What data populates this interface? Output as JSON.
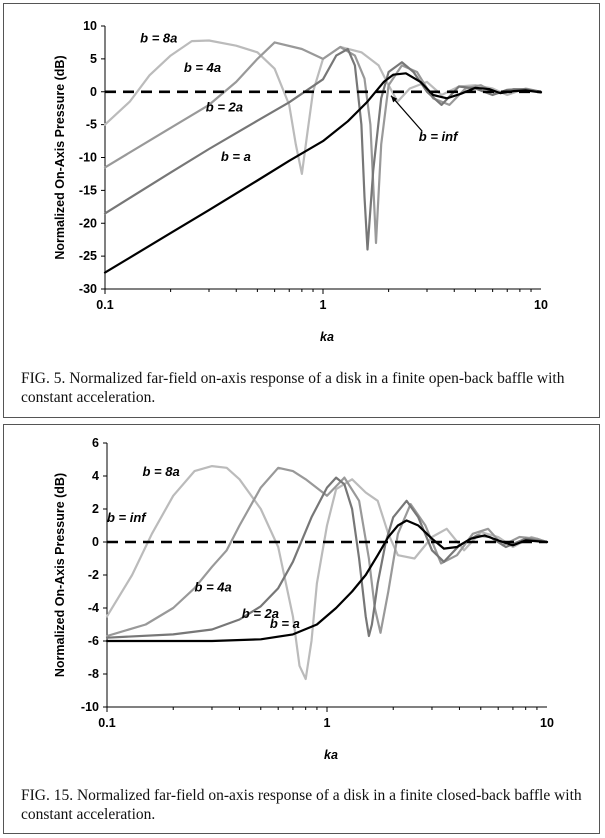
{
  "chart_data": [
    {
      "type": "line",
      "id": "fig5",
      "caption": "FIG. 5. Normalized far-field on-axis response of a disk in a finite open-back baffle with constant acceleration.",
      "xlabel": "ka",
      "ylabel": "Normalized On-Axis Pressure (dB)",
      "xscale": "log",
      "xlim": [
        0.1,
        10
      ],
      "ylim": [
        -30,
        10
      ],
      "xticks": [
        0.1,
        1,
        10
      ],
      "xtick_labels": [
        "0.1",
        "1",
        "10"
      ],
      "yticks": [
        10,
        5,
        0,
        -5,
        -10,
        -15,
        -20,
        -25,
        -30
      ],
      "ytick_labels": [
        "10",
        "5",
        "0",
        "-5",
        "-10",
        "-15",
        "-20",
        "-25",
        "-30"
      ],
      "grid": false,
      "legend": "none",
      "series": [
        {
          "name": "b = inf",
          "color": "#000000",
          "dash": true,
          "x": [
            0.1,
            10
          ],
          "y": [
            0,
            0
          ]
        },
        {
          "name": "b = a",
          "color": "#000000",
          "x": [
            0.1,
            0.2,
            0.3,
            0.5,
            0.7,
            1.0,
            1.3,
            1.6,
            1.9,
            2.1,
            2.4,
            2.8,
            3.2,
            3.7,
            4.3,
            5.0,
            5.8,
            6.5,
            7.5,
            8.5,
            10
          ],
          "y": [
            -27.5,
            -21.5,
            -18,
            -13.5,
            -10.5,
            -7.5,
            -4.5,
            -1.5,
            1.5,
            2.6,
            2.8,
            1.5,
            -0.5,
            -1.0,
            -0.3,
            0.6,
            0.4,
            -0.2,
            0.1,
            0.2,
            -0.1
          ]
        },
        {
          "name": "b = 2a",
          "color": "#777777",
          "x": [
            0.1,
            0.2,
            0.3,
            0.5,
            0.7,
            1.0,
            1.15,
            1.3,
            1.4,
            1.5,
            1.55,
            1.6,
            1.7,
            1.85,
            2.0,
            2.3,
            2.6,
            3.0,
            3.5,
            4.2,
            5.0,
            6.0,
            7.0,
            8.5,
            10
          ],
          "y": [
            -18.5,
            -12.3,
            -8.7,
            -4.4,
            -1.6,
            1.9,
            5.5,
            6.5,
            4.0,
            -5.0,
            -16.0,
            -24.0,
            -12.0,
            -1.0,
            3.0,
            4.5,
            3.0,
            0.0,
            -2.0,
            0.8,
            0.5,
            -0.5,
            0.3,
            0.4,
            0
          ]
        },
        {
          "name": "b = 4a",
          "color": "#999999",
          "x": [
            0.1,
            0.2,
            0.3,
            0.4,
            0.5,
            0.6,
            0.8,
            1.0,
            1.2,
            1.4,
            1.55,
            1.65,
            1.75,
            1.85,
            2.0,
            2.3,
            2.7,
            3.2,
            3.8,
            4.5,
            5.3,
            6.2,
            7.5,
            9.0,
            10
          ],
          "y": [
            -11.5,
            -5.5,
            -2.0,
            1.5,
            5.0,
            7.5,
            6.5,
            5.0,
            6.8,
            5.5,
            2.0,
            -5.0,
            -23.0,
            -8.0,
            1.0,
            4.0,
            3.0,
            -1.0,
            -2.0,
            0.5,
            1.0,
            -0.3,
            0.4,
            0.3,
            0
          ]
        },
        {
          "name": "b = 8a",
          "color": "#bbbbbb",
          "x": [
            0.1,
            0.13,
            0.16,
            0.2,
            0.25,
            0.3,
            0.4,
            0.5,
            0.6,
            0.7,
            0.75,
            0.8,
            0.85,
            0.9,
            1.0,
            1.2,
            1.5,
            1.8,
            2.0,
            2.2,
            2.5,
            3.0,
            3.5,
            4.2,
            5.0,
            6.0,
            7.0,
            8.5,
            10
          ],
          "y": [
            -5.0,
            -1.5,
            2.5,
            5.5,
            7.7,
            7.8,
            7.0,
            6.0,
            3.5,
            -2.0,
            -8.0,
            -12.5,
            -6.0,
            0.0,
            5.0,
            6.8,
            6.0,
            4.0,
            1.0,
            -1.5,
            0.5,
            1.5,
            -0.5,
            0.8,
            1.0,
            0.5,
            -0.5,
            0.5,
            0
          ]
        }
      ],
      "annotations": [
        {
          "text": "b = 8a",
          "x": 0.145,
          "y": 7.5
        },
        {
          "text": "b = 4a",
          "x": 0.23,
          "y": 3.0
        },
        {
          "text": "b = 2a",
          "x": 0.29,
          "y": -3.0
        },
        {
          "text": "b = a",
          "x": 0.34,
          "y": -10.5
        },
        {
          "text": "b = inf",
          "x": 2.75,
          "y": -7.5
        }
      ]
    },
    {
      "type": "line",
      "id": "fig15",
      "caption": "FIG. 15. Normalized far-field on-axis response of a disk in a finite closed-back baffle with constant acceleration.",
      "xlabel": "ka",
      "ylabel": "Normalized On-Axis Pressure (dB)",
      "xscale": "log",
      "xlim": [
        0.1,
        10
      ],
      "ylim": [
        -10,
        6
      ],
      "xticks": [
        0.1,
        1,
        10
      ],
      "xtick_labels": [
        "0.1",
        "1",
        "10"
      ],
      "yticks": [
        6,
        4,
        2,
        0,
        -2,
        -4,
        -6,
        -8,
        -10
      ],
      "ytick_labels": [
        "6",
        "4",
        "2",
        "0",
        "-2",
        "-4",
        "-6",
        "-8",
        "-10"
      ],
      "grid": false,
      "legend": "none",
      "series": [
        {
          "name": "b = inf",
          "color": "#000000",
          "dash": true,
          "x": [
            0.1,
            10
          ],
          "y": [
            0,
            0
          ]
        },
        {
          "name": "b = a",
          "color": "#000000",
          "x": [
            0.1,
            0.3,
            0.5,
            0.7,
            0.9,
            1.1,
            1.3,
            1.5,
            1.7,
            1.9,
            2.1,
            2.3,
            2.6,
            3.0,
            3.4,
            3.9,
            4.5,
            5.2,
            6.0,
            7.0,
            8.0,
            10
          ],
          "y": [
            -6.0,
            -6.0,
            -5.9,
            -5.6,
            -5.0,
            -4.0,
            -3.0,
            -2.0,
            -0.8,
            0.3,
            1.0,
            1.3,
            1.0,
            0.2,
            -0.4,
            -0.3,
            0.2,
            0.4,
            0.1,
            -0.2,
            0.1,
            0
          ]
        },
        {
          "name": "b = 2a",
          "color": "#777777",
          "x": [
            0.1,
            0.2,
            0.3,
            0.4,
            0.5,
            0.6,
            0.7,
            0.85,
            1.0,
            1.1,
            1.2,
            1.3,
            1.4,
            1.5,
            1.55,
            1.6,
            1.7,
            1.85,
            2.0,
            2.3,
            2.6,
            3.0,
            3.4,
            4.0,
            4.8,
            5.5,
            6.5,
            8.0,
            10
          ],
          "y": [
            -5.8,
            -5.6,
            -5.3,
            -4.7,
            -3.9,
            -2.8,
            -1.2,
            1.5,
            3.3,
            3.9,
            3.5,
            2.0,
            -1.0,
            -4.5,
            -5.7,
            -5.0,
            -2.5,
            0.0,
            1.5,
            2.5,
            1.5,
            -0.5,
            -1.2,
            -0.2,
            0.4,
            0.3,
            -0.3,
            0.2,
            0
          ]
        },
        {
          "name": "b = 4a",
          "color": "#999999",
          "x": [
            0.1,
            0.15,
            0.2,
            0.25,
            0.3,
            0.35,
            0.4,
            0.5,
            0.6,
            0.7,
            0.8,
            1.0,
            1.2,
            1.4,
            1.55,
            1.65,
            1.75,
            1.9,
            2.1,
            2.4,
            2.8,
            3.3,
            3.9,
            4.6,
            5.4,
            6.3,
            7.5,
            9.0,
            10
          ],
          "y": [
            -5.7,
            -5.0,
            -4.0,
            -2.8,
            -1.5,
            -0.5,
            1.0,
            3.3,
            4.5,
            4.3,
            3.8,
            2.8,
            3.9,
            2.5,
            -1.0,
            -4.0,
            -5.5,
            -3.0,
            0.5,
            2.3,
            1.0,
            -1.3,
            -0.8,
            0.5,
            0.8,
            -0.2,
            0.3,
            0.2,
            0
          ]
        },
        {
          "name": "b = 8a",
          "color": "#bbbbbb",
          "x": [
            0.1,
            0.13,
            0.16,
            0.2,
            0.25,
            0.3,
            0.35,
            0.4,
            0.5,
            0.6,
            0.7,
            0.75,
            0.8,
            0.85,
            0.9,
            1.0,
            1.1,
            1.3,
            1.5,
            1.7,
            1.9,
            2.1,
            2.5,
            3.0,
            3.5,
            4.2,
            5.0,
            6.0,
            7.0,
            8.5,
            10
          ],
          "y": [
            -4.5,
            -2.0,
            0.5,
            2.8,
            4.3,
            4.6,
            4.5,
            3.8,
            2.0,
            -0.3,
            -4.5,
            -7.5,
            -8.3,
            -6.0,
            -2.5,
            1.0,
            3.2,
            3.8,
            3.0,
            2.5,
            0.5,
            -0.8,
            -1.0,
            0.3,
            0.8,
            -0.5,
            0.6,
            0.3,
            -0.3,
            0.3,
            0
          ]
        }
      ],
      "annotations": [
        {
          "text": "b = 8a",
          "x": 0.145,
          "y": 4.0
        },
        {
          "text": "b = inf",
          "x": 0.1,
          "y": 1.2
        },
        {
          "text": "b = 4a",
          "x": 0.25,
          "y": -3.0
        },
        {
          "text": "b = 2a",
          "x": 0.41,
          "y": -4.6
        },
        {
          "text": "b = a",
          "x": 0.55,
          "y": -5.2
        }
      ]
    }
  ]
}
